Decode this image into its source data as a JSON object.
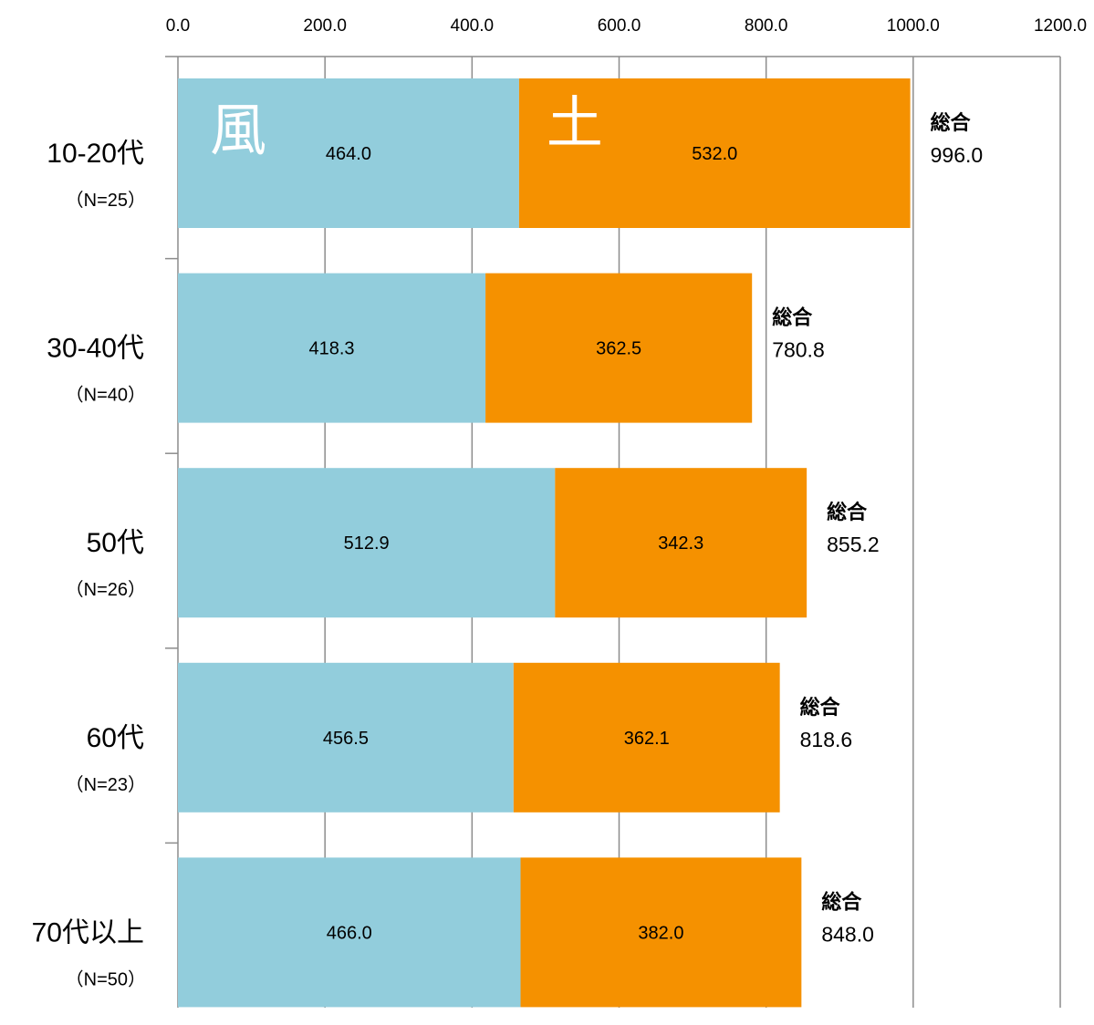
{
  "chart_data": {
    "type": "bar",
    "orientation": "horizontal",
    "stacked": true,
    "categories": [
      "10-20代",
      "30-40代",
      "50代",
      "60代",
      "70代以上"
    ],
    "category_sublabels": [
      "（N=25）",
      "（N=40）",
      "（N=26）",
      "（N=23）",
      "（N=50）"
    ],
    "series": [
      {
        "name": "風",
        "values": [
          464.0,
          418.3,
          512.9,
          456.5,
          466.0
        ],
        "color": "#92cddc"
      },
      {
        "name": "土",
        "values": [
          532.0,
          362.5,
          342.3,
          362.1,
          382.0
        ],
        "color": "#f59100"
      }
    ],
    "totals_label": "総合",
    "totals": [
      996.0,
      780.8,
      855.2,
      818.6,
      848.0
    ],
    "xlim": [
      0,
      1200
    ],
    "xticks": [
      0,
      200,
      400,
      600,
      800,
      1000,
      1200
    ],
    "tick_labels": [
      "0.0",
      "200.0",
      "400.0",
      "600.0",
      "800.0",
      "1000.0",
      "1200.0"
    ],
    "axis_position": "top",
    "grid": true,
    "legend": "inline-on-first-bar",
    "title": "",
    "xlabel": "",
    "ylabel": ""
  }
}
